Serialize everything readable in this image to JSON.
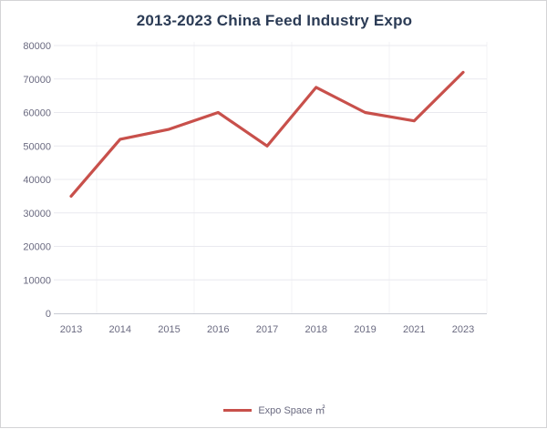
{
  "window": {
    "background": "#ffffff",
    "border_color": "#d4d4d6"
  },
  "chart_data": {
    "type": "line",
    "title": "2013-2023 China Feed Industry Expo",
    "categories": [
      "2013",
      "2014",
      "2015",
      "2016",
      "2017",
      "2018",
      "2019",
      "2021",
      "2023"
    ],
    "series": [
      {
        "name": "Expo Space ㎡",
        "color": "#c8504b",
        "values": [
          35000,
          52000,
          55000,
          60000,
          50000,
          67500,
          60000,
          57500,
          72000
        ]
      }
    ],
    "xlabel": "",
    "ylabel": "",
    "ylim": [
      0,
      80000
    ],
    "y_tick_step": 10000,
    "y_tick_labels": [
      "0",
      "10000",
      "20000",
      "30000",
      "40000",
      "50000",
      "60000",
      "70000",
      "80000"
    ],
    "grid": true,
    "legend_position": "bottom",
    "colors": {
      "title": "#2b3b55",
      "tick_label": "#6a6a80",
      "gridline": "#e9e9ef",
      "vertical_guide": "#f3f3f6",
      "axis_line": "#c9ccd4"
    }
  }
}
